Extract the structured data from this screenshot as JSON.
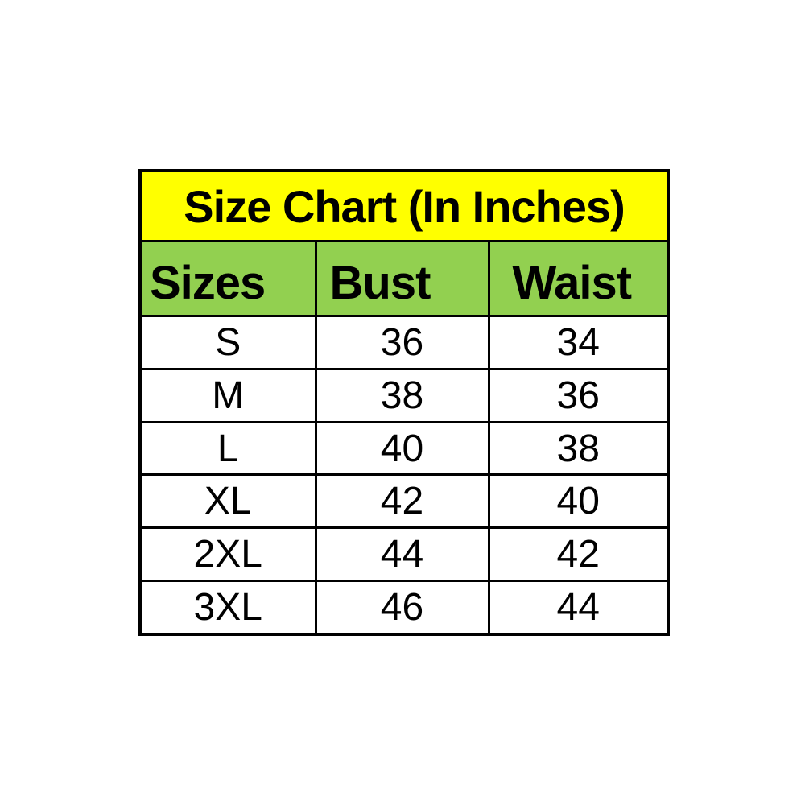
{
  "table": {
    "title": "Size Chart (In Inches)",
    "headers": [
      "Sizes",
      "Bust",
      "Waist"
    ],
    "rows": [
      [
        "S",
        "36",
        "34"
      ],
      [
        "M",
        "38",
        "36"
      ],
      [
        "L",
        "40",
        "38"
      ],
      [
        "XL",
        "42",
        "40"
      ],
      [
        "2XL",
        "44",
        "42"
      ],
      [
        "3XL",
        "46",
        "44"
      ]
    ],
    "colors": {
      "title_bg": "#ffff00",
      "header_bg": "#92d050",
      "row_bg": "#ffffff",
      "border": "#000000",
      "text": "#000000"
    }
  },
  "chart_data": {
    "type": "table",
    "title": "Size Chart (In Inches)",
    "units": "inches",
    "columns": [
      "Sizes",
      "Bust",
      "Waist"
    ],
    "rows": [
      [
        "S",
        36,
        34
      ],
      [
        "M",
        38,
        36
      ],
      [
        "L",
        40,
        38
      ],
      [
        "XL",
        42,
        40
      ],
      [
        "2XL",
        44,
        42
      ],
      [
        "3XL",
        46,
        44
      ]
    ]
  }
}
